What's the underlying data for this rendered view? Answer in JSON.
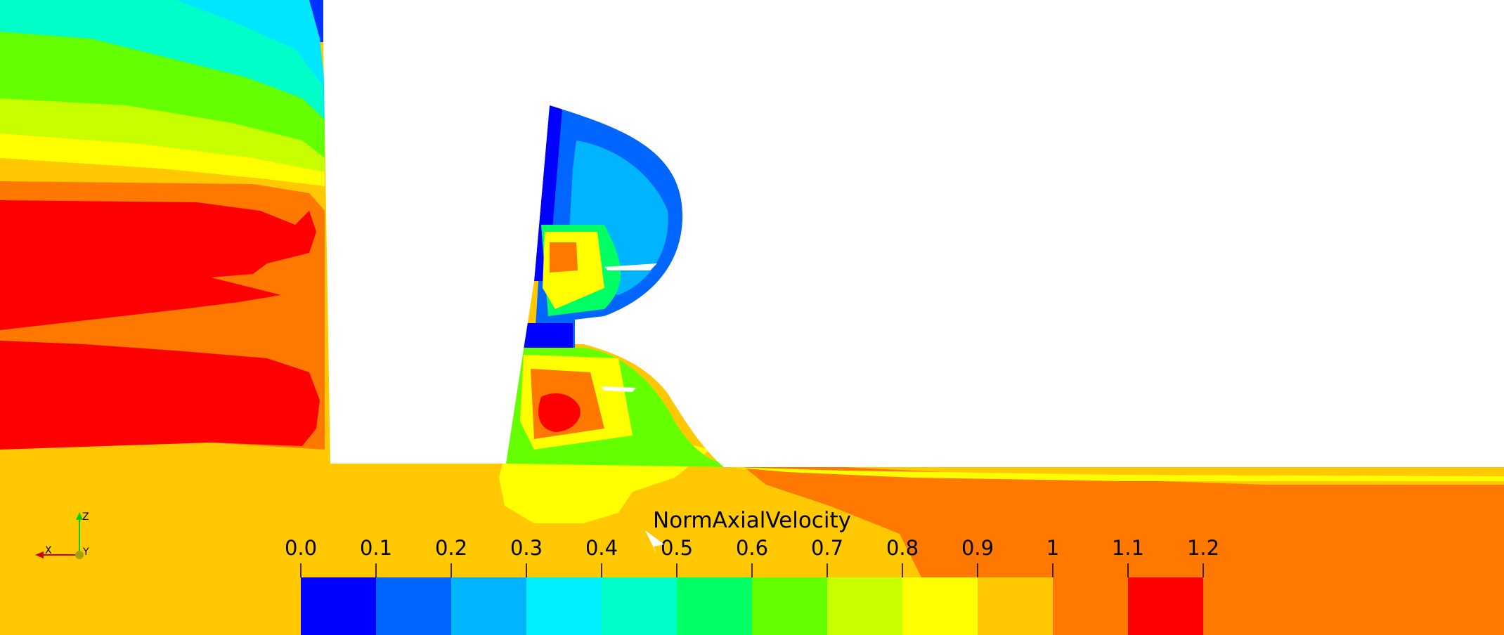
{
  "chart_data": {
    "type": "heatmap",
    "title": "NormAxialVelocity",
    "color_levels": [
      0.0,
      0.1,
      0.2,
      0.3,
      0.4,
      0.5,
      0.6,
      0.7,
      0.8,
      0.9,
      1.0,
      1.1,
      1.2
    ],
    "tick_labels": [
      "0.0",
      "0.1",
      "0.2",
      "0.3",
      "0.4",
      "0.5",
      "0.6",
      "0.7",
      "0.8",
      "0.9",
      "1",
      "1.1",
      "1.2"
    ],
    "colormap": [
      "#0000ff",
      "#0066ff",
      "#00b4ff",
      "#00f0ff",
      "#00ffc8",
      "#00ff64",
      "#64ff00",
      "#c8ff00",
      "#ffff00",
      "#ffc800",
      "#ff7800",
      "#ff0000"
    ],
    "legend_placement": "bottom-center",
    "orientation_axes": {
      "x": "X",
      "y": "Y",
      "z": "Z"
    }
  }
}
